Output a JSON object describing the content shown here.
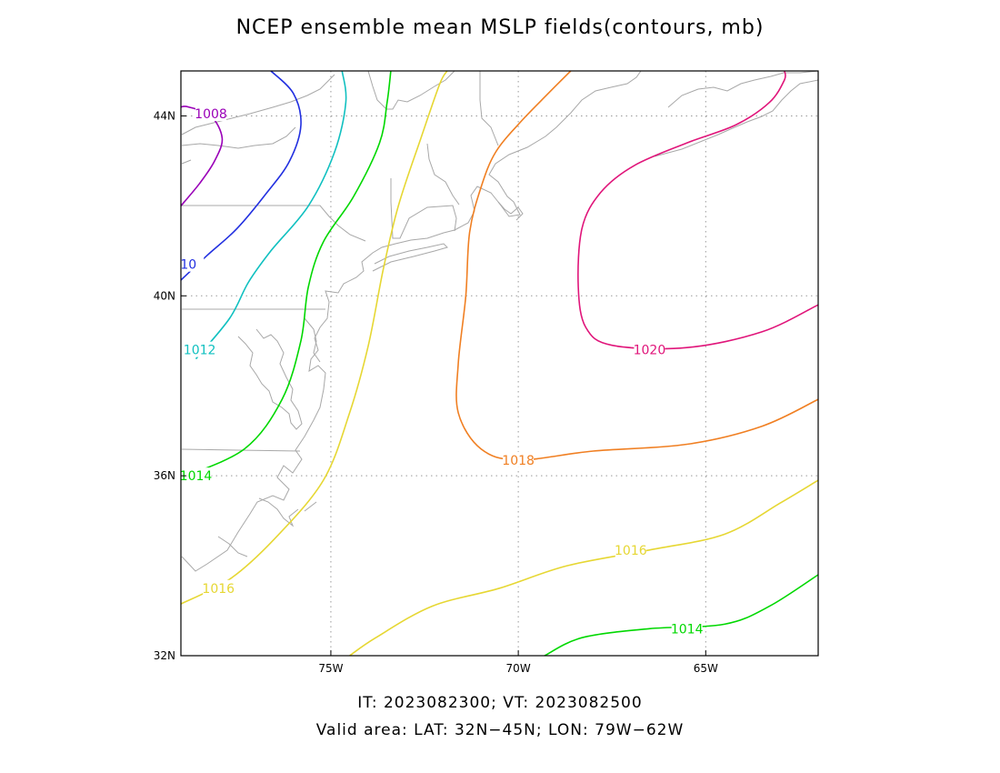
{
  "title": "NCEP ensemble mean MSLP fields(contours, mb)",
  "footer": {
    "line1": "IT: 2023082300; VT: 2023082500",
    "line2": "Valid area: LAT: 32N−45N; LON: 79W−62W"
  },
  "map": {
    "lon_range": [
      -79,
      -62
    ],
    "lat_range": [
      32,
      45
    ],
    "grid": "dotted",
    "x_ticks": [
      {
        "value": -75,
        "label": "75W"
      },
      {
        "value": -70,
        "label": "70W"
      },
      {
        "value": -65,
        "label": "65W"
      }
    ],
    "y_ticks": [
      {
        "value": 32,
        "label": "32N"
      },
      {
        "value": 36,
        "label": "36N"
      },
      {
        "value": 40,
        "label": "40N"
      },
      {
        "value": 44,
        "label": "44N"
      }
    ],
    "coast_color": "#a8a8a8"
  },
  "chart_data": {
    "type": "contour",
    "variable": "MSLP (mb)",
    "contours": [
      {
        "level": 1008,
        "label": "1008",
        "color": "#9a00b8",
        "label_at": [
          [
            -78.2,
            44.05
          ]
        ],
        "points": [
          [
            -79,
            42.0
          ],
          [
            -78.5,
            42.5
          ],
          [
            -78.1,
            43.0
          ],
          [
            -77.9,
            43.5
          ],
          [
            -78.2,
            44.0
          ],
          [
            -78.8,
            44.2
          ],
          [
            -79,
            44.2
          ]
        ]
      },
      {
        "level": 1010,
        "label": "10",
        "color": "#2230e0",
        "label_at": [
          [
            -78.8,
            40.7
          ]
        ],
        "points": [
          [
            -79,
            40.35
          ],
          [
            -78.3,
            40.9
          ],
          [
            -77.5,
            41.5
          ],
          [
            -76.7,
            42.3
          ],
          [
            -76.1,
            43.0
          ],
          [
            -75.8,
            43.8
          ],
          [
            -76.0,
            44.5
          ],
          [
            -76.6,
            45.0
          ]
        ]
      },
      {
        "level": 1012,
        "label": "1012",
        "color": "#10c0c0",
        "label_at": [
          [
            -78.5,
            38.8
          ]
        ],
        "points": [
          [
            -78.6,
            38.6
          ],
          [
            -77.7,
            39.5
          ],
          [
            -77.2,
            40.3
          ],
          [
            -76.6,
            41.0
          ],
          [
            -75.6,
            42.0
          ],
          [
            -74.9,
            43.2
          ],
          [
            -74.6,
            44.3
          ],
          [
            -74.7,
            45.0
          ]
        ]
      },
      {
        "level": 1014,
        "label": "1014",
        "color": "#00d800",
        "label_at": [
          [
            -78.6,
            36.0
          ]
        ],
        "points": [
          [
            -79,
            35.95
          ],
          [
            -77.3,
            36.6
          ],
          [
            -76.3,
            37.7
          ],
          [
            -75.8,
            39.0
          ],
          [
            -75.6,
            40.2
          ],
          [
            -75.2,
            41.2
          ],
          [
            -74.4,
            42.2
          ],
          [
            -73.7,
            43.4
          ],
          [
            -73.5,
            44.3
          ],
          [
            -73.4,
            45.0
          ]
        ]
      },
      {
        "level": 1016,
        "label": "1016",
        "color": "#e6d733",
        "label_at": [
          [
            -78.0,
            33.5
          ]
        ],
        "points": [
          [
            -79,
            33.15
          ],
          [
            -77.7,
            33.7
          ],
          [
            -76.5,
            34.6
          ],
          [
            -75.2,
            35.9
          ],
          [
            -74.5,
            37.4
          ],
          [
            -74.0,
            38.9
          ],
          [
            -73.6,
            40.6
          ],
          [
            -73.2,
            42.0
          ],
          [
            -72.6,
            43.5
          ],
          [
            -72.1,
            44.7
          ],
          [
            -71.9,
            45.0
          ]
        ]
      },
      {
        "level": 1016,
        "label": "1016",
        "color": "#e6d733",
        "label_at": [
          [
            -67.0,
            34.35
          ]
        ],
        "points": [
          [
            -74.5,
            32.0
          ],
          [
            -73.8,
            32.4
          ],
          [
            -72.3,
            33.1
          ],
          [
            -70.5,
            33.5
          ],
          [
            -68.7,
            34.0
          ],
          [
            -66.5,
            34.35
          ],
          [
            -64.5,
            34.7
          ],
          [
            -63.0,
            35.4
          ],
          [
            -62,
            35.9
          ]
        ]
      },
      {
        "level": 1018,
        "label": "1018",
        "color": "#f07f22",
        "label_at": [
          [
            -70.0,
            36.35
          ]
        ],
        "points": [
          [
            -62,
            37.7
          ],
          [
            -63.5,
            37.1
          ],
          [
            -65.5,
            36.7
          ],
          [
            -68.0,
            36.55
          ],
          [
            -70.0,
            36.35
          ],
          [
            -71.0,
            36.6
          ],
          [
            -71.6,
            37.4
          ],
          [
            -71.6,
            38.5
          ],
          [
            -71.4,
            40.0
          ],
          [
            -71.3,
            41.4
          ],
          [
            -71.0,
            42.4
          ],
          [
            -70.6,
            43.2
          ],
          [
            -69.9,
            43.9
          ],
          [
            -69.2,
            44.5
          ],
          [
            -68.6,
            45.0
          ]
        ]
      },
      {
        "level": 1020,
        "label": "1020",
        "color": "#e0157a",
        "label_at": [
          [
            -66.5,
            38.8
          ]
        ],
        "points": [
          [
            -62,
            39.8
          ],
          [
            -63.5,
            39.2
          ],
          [
            -65.5,
            38.85
          ],
          [
            -67.5,
            38.9
          ],
          [
            -68.2,
            39.3
          ],
          [
            -68.4,
            40.2
          ],
          [
            -68.3,
            41.5
          ],
          [
            -67.8,
            42.3
          ],
          [
            -66.9,
            42.9
          ],
          [
            -65.5,
            43.4
          ],
          [
            -64.2,
            43.8
          ],
          [
            -63.3,
            44.3
          ],
          [
            -62.9,
            44.8
          ],
          [
            -62.9,
            45.0
          ]
        ]
      },
      {
        "level": 1014,
        "label": "1014",
        "color": "#00d800",
        "label_at": [
          [
            -65.5,
            32.6
          ]
        ],
        "points": [
          [
            -69.3,
            32.0
          ],
          [
            -68.3,
            32.4
          ],
          [
            -66.5,
            32.6
          ],
          [
            -64.5,
            32.7
          ],
          [
            -63.3,
            33.1
          ],
          [
            -62,
            33.8
          ]
        ]
      }
    ]
  }
}
